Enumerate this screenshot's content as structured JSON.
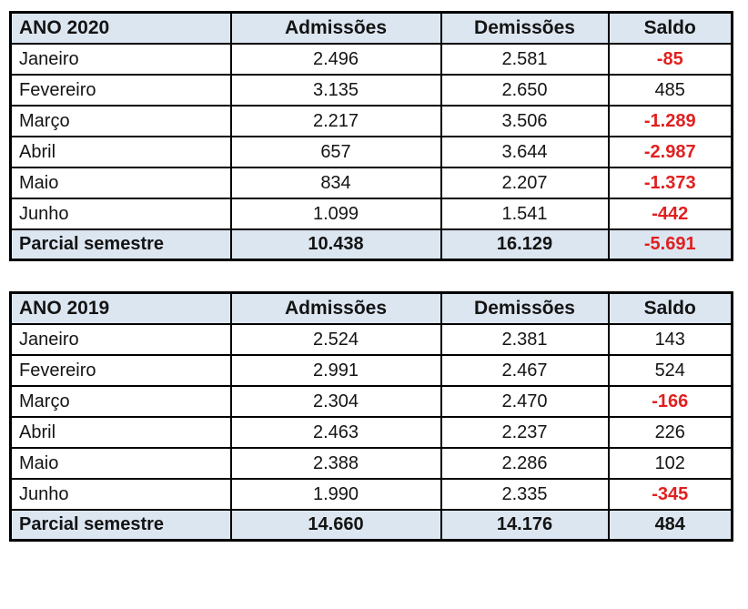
{
  "colors": {
    "page_bg": "#ffffff",
    "header_bg": "#dce6f1",
    "border": "#000000",
    "body_text": "#141414",
    "negative_text": "#e02020"
  },
  "chart_data": [
    {
      "type": "table",
      "title": "ANO 2020",
      "headers": [
        "Admissões",
        "Demissões",
        "Saldo"
      ],
      "rows": [
        [
          "Janeiro",
          "2.496",
          "2.581",
          "-85"
        ],
        [
          "Fevereiro",
          "3.135",
          "2.650",
          "485"
        ],
        [
          "Março",
          "2.217",
          "3.506",
          "-1.289"
        ],
        [
          "Abril",
          "657",
          "3.644",
          "-2.987"
        ],
        [
          "Maio",
          "834",
          "2.207",
          "-1.373"
        ],
        [
          "Junho",
          "1.099",
          "1.541",
          "-442"
        ]
      ],
      "total": [
        "Parcial semestre",
        "10.438",
        "16.129",
        "-5.691"
      ]
    },
    {
      "type": "table",
      "title": "ANO 2019",
      "headers": [
        "Admissões",
        "Demissões",
        "Saldo"
      ],
      "rows": [
        [
          "Janeiro",
          "2.524",
          "2.381",
          "143"
        ],
        [
          "Fevereiro",
          "2.991",
          "2.467",
          "524"
        ],
        [
          "Março",
          "2.304",
          "2.470",
          "-166"
        ],
        [
          "Abril",
          "2.463",
          "2.237",
          "226"
        ],
        [
          "Maio",
          "2.388",
          "2.286",
          "102"
        ],
        [
          "Junho",
          "1.990",
          "2.335",
          "-345"
        ]
      ],
      "total": [
        "Parcial semestre",
        "14.660",
        "14.176",
        "484"
      ]
    }
  ]
}
